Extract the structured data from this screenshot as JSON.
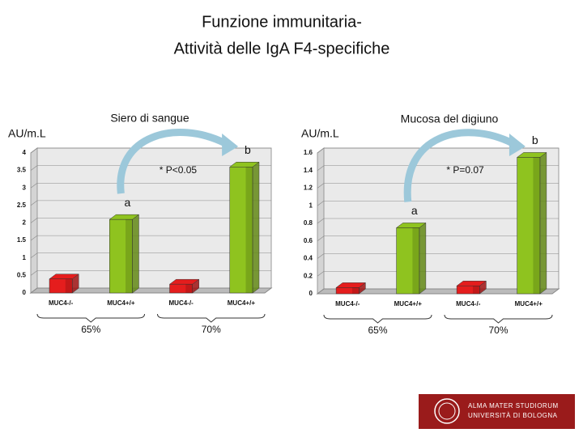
{
  "title": [
    "Funzione immunitaria-",
    "Attività delle IgA F4-specifiche"
  ],
  "logo": [
    "ALMA MATER STUDIORUM",
    "UNIVERSITÀ DI BOLOGNA"
  ],
  "chart_data": [
    {
      "type": "bar3d",
      "title": "Siero di sangue",
      "y_label": "AU/m.L",
      "categories": [
        "MUC4-/-",
        "MUC4+/+",
        "MUC4-/-",
        "MUC4+/+"
      ],
      "values": [
        0.4,
        2.1,
        0.25,
        3.6
      ],
      "colors": [
        "#e51d1d",
        "#8fc31f",
        "#e51d1d",
        "#8fc31f"
      ],
      "significance": [
        null,
        "a",
        null,
        "b"
      ],
      "annotation": "* P<0.05",
      "groups": [
        "65%",
        "70%"
      ],
      "ylim": [
        0,
        4
      ],
      "yticks": [
        0,
        0.5,
        1,
        1.5,
        2,
        2.5,
        3,
        3.5,
        4
      ],
      "grid": true
    },
    {
      "type": "bar3d",
      "title": "Mucosa del digiuno",
      "y_label": "AU/m.L",
      "categories": [
        "MUC4-/-",
        "MUC4+/+",
        "MUC4-/-",
        "MUC4+/+"
      ],
      "values": [
        0.07,
        0.75,
        0.09,
        1.55
      ],
      "colors": [
        "#e51d1d",
        "#8fc31f",
        "#e51d1d",
        "#8fc31f"
      ],
      "significance": [
        null,
        "a",
        null,
        "b"
      ],
      "annotation": "* P=0.07",
      "groups": [
        "65%",
        "70%"
      ],
      "ylim": [
        0,
        1.6
      ],
      "yticks": [
        0,
        0.2,
        0.4,
        0.6,
        0.8,
        1,
        1.2,
        1.4,
        1.6
      ],
      "grid": true
    }
  ]
}
